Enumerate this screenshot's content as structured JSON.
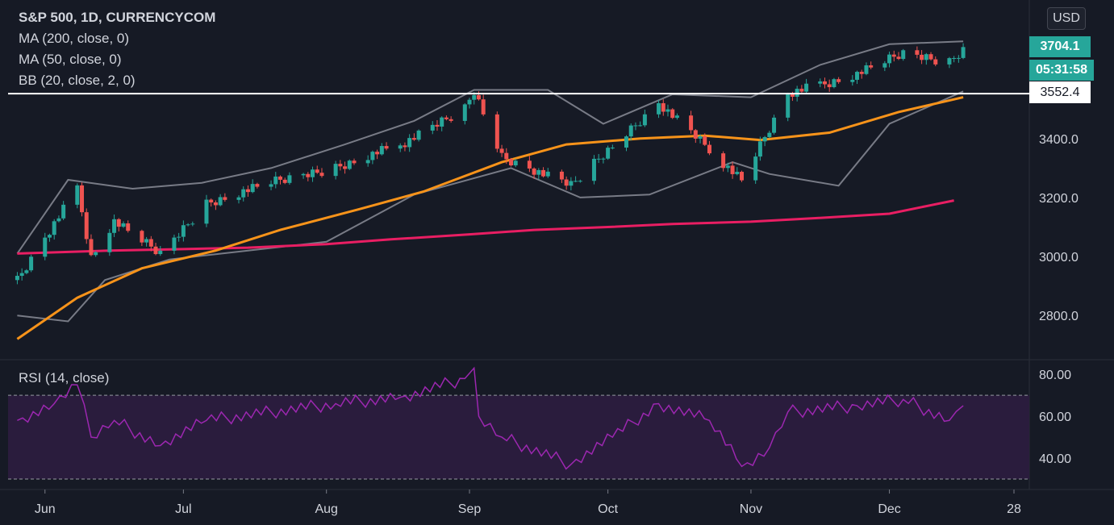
{
  "header": {
    "title": "S&P 500, 1D, CURRENCYCOM",
    "indicators": [
      "MA (200, close, 0)",
      "MA (50, close, 0)",
      "BB (20, close, 2, 0)"
    ],
    "currency_button": "USD"
  },
  "price_badges": {
    "last_price": "3704.1",
    "countdown": "05:31:58",
    "horizontal_line": "3552.4",
    "colors": {
      "last_price_bg": "#26a69a",
      "line_bg": "#ffffff"
    }
  },
  "rsi_panel": {
    "title": "RSI (14, close)"
  },
  "colors": {
    "background": "#161a25",
    "up": "#26a69a",
    "down": "#ef5350",
    "ma50": "#f7931a",
    "ma200": "#e91e63",
    "bollinger": "#787b86",
    "rsi_line": "#9c27b0",
    "rsi_band": "#2a1c3d"
  },
  "chart_data": [
    {
      "type": "candlestick",
      "title": "S&P 500, 1D, CURRENCYCOM",
      "x_axis": {
        "tick_labels": [
          "Jun",
          "Jul",
          "Aug",
          "Sep",
          "Oct",
          "Nov",
          "Dec",
          "28"
        ]
      },
      "y_axis": {
        "tick_labels": [
          "2800.0",
          "3000.0",
          "3200.0",
          "3400.0"
        ],
        "ylim": [
          2650,
          3870
        ]
      },
      "horizontal_line": 3552.4,
      "last_price": 3704.1,
      "series": [
        {
          "name": "MA (200, close, 0)",
          "x": [
            "2020-05-26",
            "2020-06-15",
            "2020-07-01",
            "2020-07-15",
            "2020-08-01",
            "2020-08-15",
            "2020-09-01",
            "2020-09-15",
            "2020-10-01",
            "2020-10-15",
            "2020-11-01",
            "2020-11-15",
            "2020-12-01",
            "2020-12-15"
          ],
          "values": [
            3010,
            3020,
            3025,
            3030,
            3042,
            3058,
            3075,
            3090,
            3100,
            3110,
            3118,
            3130,
            3145,
            3190
          ]
        },
        {
          "name": "MA (50, close, 0)",
          "x": [
            "2020-05-26",
            "2020-06-08",
            "2020-06-22",
            "2020-07-08",
            "2020-07-22",
            "2020-08-08",
            "2020-08-22",
            "2020-09-08",
            "2020-09-22",
            "2020-10-08",
            "2020-10-22",
            "2020-11-03",
            "2020-11-18",
            "2020-12-03",
            "2020-12-17"
          ],
          "values": [
            2720,
            2860,
            2960,
            3020,
            3090,
            3160,
            3220,
            3320,
            3380,
            3400,
            3410,
            3395,
            3420,
            3490,
            3540
          ]
        },
        {
          "name": "BB upper",
          "x": [
            "2020-05-26",
            "2020-06-06",
            "2020-06-20",
            "2020-07-05",
            "2020-07-20",
            "2020-08-05",
            "2020-08-20",
            "2020-09-02",
            "2020-09-18",
            "2020-09-30",
            "2020-10-15",
            "2020-11-01",
            "2020-11-16",
            "2020-12-01",
            "2020-12-17"
          ],
          "values": [
            3010,
            3260,
            3230,
            3250,
            3300,
            3380,
            3460,
            3565,
            3565,
            3450,
            3550,
            3540,
            3650,
            3720,
            3730
          ]
        },
        {
          "name": "BB lower",
          "x": [
            "2020-05-26",
            "2020-06-06",
            "2020-06-14",
            "2020-06-28",
            "2020-07-15",
            "2020-08-01",
            "2020-08-20",
            "2020-09-10",
            "2020-09-25",
            "2020-10-10",
            "2020-10-28",
            "2020-11-05",
            "2020-11-20",
            "2020-12-01",
            "2020-12-17"
          ],
          "values": [
            2800,
            2780,
            2920,
            2990,
            3020,
            3050,
            3210,
            3300,
            3200,
            3210,
            3320,
            3280,
            3240,
            3450,
            3560
          ]
        },
        {
          "name": "Price (close)",
          "x": [
            "2020-05-26",
            "2020-06-03",
            "2020-06-08",
            "2020-06-11",
            "2020-06-16",
            "2020-06-26",
            "2020-07-06",
            "2020-07-20",
            "2020-08-03",
            "2020-08-17",
            "2020-08-31",
            "2020-09-02",
            "2020-09-08",
            "2020-09-23",
            "2020-10-12",
            "2020-10-30",
            "2020-11-09",
            "2020-11-24",
            "2020-12-04",
            "2020-12-14",
            "2020-12-17"
          ],
          "values": [
            2920,
            3110,
            3230,
            3000,
            3120,
            3010,
            3180,
            3250,
            3300,
            3380,
            3500,
            3560,
            3340,
            3240,
            3520,
            3260,
            3550,
            3620,
            3690,
            3660,
            3704
          ]
        }
      ]
    },
    {
      "type": "line",
      "title": "RSI (14, close)",
      "y_axis": {
        "tick_labels": [
          "40.00",
          "60.00",
          "80.00"
        ],
        "ylim": [
          25,
          87
        ]
      },
      "bands": [
        30,
        70
      ],
      "series": [
        {
          "name": "RSI (14, close)",
          "x": [
            "2020-05-26",
            "2020-06-03",
            "2020-06-08",
            "2020-06-11",
            "2020-06-16",
            "2020-06-26",
            "2020-07-06",
            "2020-07-20",
            "2020-08-03",
            "2020-08-17",
            "2020-08-31",
            "2020-09-02",
            "2020-09-03",
            "2020-09-08",
            "2020-09-23",
            "2020-10-02",
            "2020-10-12",
            "2020-10-23",
            "2020-10-30",
            "2020-11-05",
            "2020-11-09",
            "2020-11-24",
            "2020-12-04",
            "2020-12-14",
            "2020-12-17"
          ],
          "values": [
            58,
            66,
            75,
            50,
            58,
            46,
            58,
            62,
            66,
            69,
            78,
            83,
            60,
            50,
            37,
            50,
            66,
            58,
            36,
            45,
            62,
            65,
            68,
            58,
            65
          ]
        }
      ]
    }
  ]
}
